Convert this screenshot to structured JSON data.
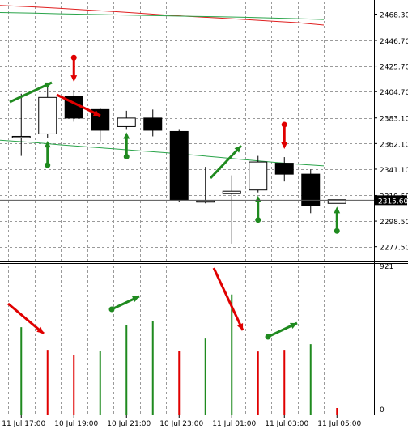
{
  "chart_data": {
    "type": "candlestick",
    "grid": true,
    "colors": {
      "bull_body": "#ffffff",
      "bear_body": "#000000",
      "wick": "#000000",
      "ma_red": "#e02020",
      "ma_green": "#2aa44a",
      "arrow_up": "#1f8a1f",
      "arrow_down": "#e00000",
      "volume_up": "#1f8a1f",
      "volume_down": "#e00000",
      "grid": "#9a9a9a",
      "current_price_box": "#000000"
    },
    "price_axis": {
      "ylim": [
        2266.0,
        2478.6
      ],
      "ticks": [
        "2468.30",
        "2446.70",
        "2425.70",
        "2404.70",
        "2383.10",
        "2362.10",
        "2341.10",
        "2319.50",
        "2298.50",
        "2277.50"
      ],
      "tick_values": [
        2468.3,
        2446.7,
        2425.7,
        2404.7,
        2383.1,
        2362.1,
        2341.1,
        2319.5,
        2298.5,
        2277.5
      ],
      "current_price": "2315.60"
    },
    "volume_axis": {
      "ylim": [
        0,
        921
      ],
      "ticks": [
        "921",
        "0"
      ]
    },
    "time_labels": [
      "11 Jul 17:00",
      "10 Jul 19:00",
      "10 Jul 21:00",
      "10 Jul 23:00",
      "11 Jul 01:00",
      "11 Jul 03:00",
      "11 Jul 05:00"
    ],
    "candles": [
      {
        "o": 2368,
        "h": 2403,
        "l": 2352,
        "c": 2368
      },
      {
        "o": 2370,
        "h": 2409,
        "l": 2367,
        "c": 2400
      },
      {
        "o": 2401,
        "h": 2406,
        "l": 2380,
        "c": 2383
      },
      {
        "o": 2390,
        "h": 2391,
        "l": 2364,
        "c": 2373
      },
      {
        "o": 2376,
        "h": 2389,
        "l": 2374,
        "c": 2383
      },
      {
        "o": 2383,
        "h": 2390,
        "l": 2368,
        "c": 2373
      },
      {
        "o": 2372,
        "h": 2374,
        "l": 2314,
        "c": 2316
      },
      {
        "o": 2315,
        "h": 2343,
        "l": 2313,
        "c": 2315
      },
      {
        "o": 2321,
        "h": 2336,
        "l": 2280,
        "c": 2323
      },
      {
        "o": 2324,
        "h": 2352,
        "l": 2322,
        "c": 2347
      },
      {
        "o": 2346,
        "h": 2351,
        "l": 2331,
        "c": 2337
      },
      {
        "o": 2337,
        "h": 2341,
        "l": 2305,
        "c": 2311
      },
      {
        "o": 2313,
        "h": 2316,
        "l": 2313,
        "c": 2316
      }
    ],
    "ma_red": [
      2475.5,
      2474.2,
      2473.0,
      2471.7,
      2470.4,
      2469.0,
      2467.6,
      2466.3,
      2465.1,
      2463.9,
      2462.6,
      2461.3,
      2459.3
    ],
    "ma_green": [
      2469.6,
      2469.1,
      2468.6,
      2468.2,
      2467.7,
      2467.3,
      2466.9,
      2466.5,
      2466.1,
      2465.7,
      2465.2,
      2464.6,
      2463.9
    ],
    "ma_green2": [
      2364.8,
      2362.9,
      2361.0,
      2359.4,
      2357.8,
      2356.2,
      2354.6,
      2352.8,
      2350.9,
      2348.9,
      2347.0,
      2345.2,
      2343.8
    ],
    "signals": [
      {
        "candle": 1,
        "dir": "up"
      },
      {
        "candle": 2,
        "dir": "down"
      },
      {
        "candle": 4,
        "dir": "up"
      },
      {
        "candle": 9,
        "dir": "up"
      },
      {
        "candle": 10,
        "dir": "down"
      },
      {
        "candle": 12,
        "dir": "up"
      }
    ],
    "volumes": [
      {
        "v": 540,
        "dir": "up"
      },
      {
        "v": 400,
        "dir": "down"
      },
      {
        "v": 370,
        "dir": "down"
      },
      {
        "v": 395,
        "dir": "up"
      },
      {
        "v": 555,
        "dir": "up"
      },
      {
        "v": 580,
        "dir": "up"
      },
      {
        "v": 395,
        "dir": "down"
      },
      {
        "v": 470,
        "dir": "up"
      },
      {
        "v": 742,
        "dir": "up"
      },
      {
        "v": 390,
        "dir": "down"
      },
      {
        "v": 400,
        "dir": "down"
      },
      {
        "v": 435,
        "dir": "up"
      },
      {
        "v": 40,
        "dir": "down"
      }
    ],
    "volume_signals": [
      {
        "bar": 0,
        "dir": "down"
      },
      {
        "bar": 4,
        "dir": "up"
      },
      {
        "bar": 8,
        "dir": "down"
      },
      {
        "bar": 10,
        "dir": "up"
      }
    ]
  }
}
